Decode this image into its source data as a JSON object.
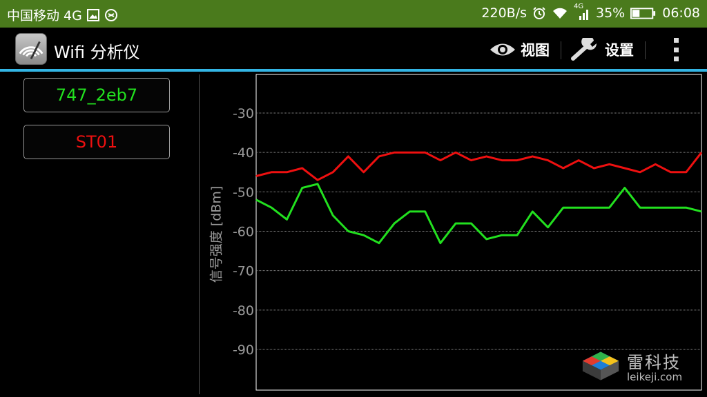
{
  "status_bar": {
    "carrier": "中国移动 4G",
    "net_speed": "220B/s",
    "signal_tag": "4G",
    "battery": "35%",
    "time": "06:08"
  },
  "action_bar": {
    "title": "Wifi 分析仪",
    "view_label": "视图",
    "settings_label": "设置"
  },
  "networks": [
    {
      "ssid": "747_2eb7",
      "color": "#22e01f"
    },
    {
      "ssid": "ST01",
      "color": "#ee1010"
    }
  ],
  "chart_data": {
    "type": "line",
    "ylabel": "信号强度 [dBm]",
    "yticks": [
      -30,
      -40,
      -50,
      -60,
      -70,
      -80,
      -90
    ],
    "ylim": [
      -100,
      -20
    ],
    "grid": true,
    "series": [
      {
        "name": "ST01",
        "color": "#ee1010",
        "values": [
          -46,
          -45,
          -45,
          -44,
          -47,
          -45,
          -41,
          -45,
          -41,
          -40,
          -40,
          -40,
          -42,
          -40,
          -42,
          -41,
          -42,
          -42,
          -41,
          -42,
          -44,
          -42,
          -44,
          -43,
          -44,
          -45,
          -43,
          -45,
          -45,
          -40
        ]
      },
      {
        "name": "747_2eb7",
        "color": "#22e01f",
        "values": [
          -52,
          -54,
          -57,
          -49,
          -48,
          -56,
          -60,
          -61,
          -63,
          -58,
          -55,
          -55,
          -63,
          -58,
          -58,
          -62,
          -61,
          -61,
          -55,
          -59,
          -54,
          -54,
          -54,
          -54,
          -49,
          -54,
          -54,
          -54,
          -54,
          -55
        ]
      }
    ]
  },
  "watermark": {
    "cn": "雷科技",
    "en": "leikeji.com"
  }
}
